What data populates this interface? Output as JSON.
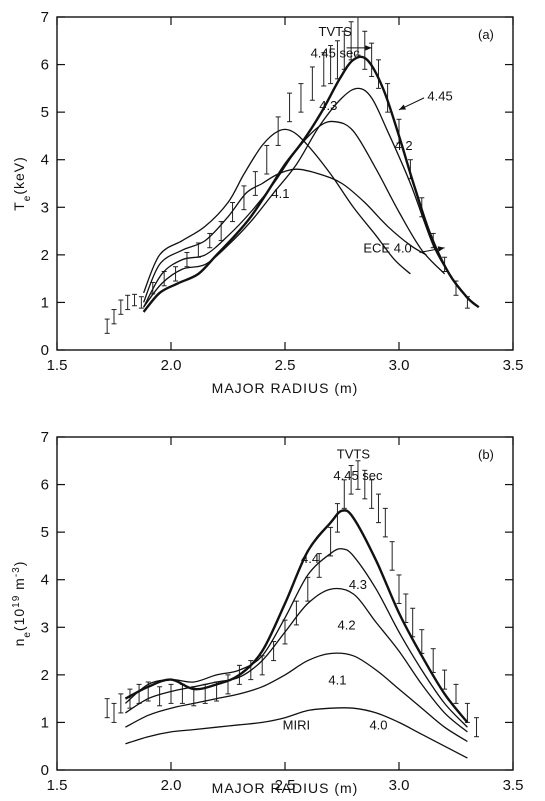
{
  "chart_data": [
    {
      "panel_label": "(a)",
      "type": "line",
      "xlabel": "MAJOR RADIUS (m)",
      "ylabel": "Te(keV)",
      "xlim": [
        1.5,
        3.5
      ],
      "ylim": [
        0,
        7
      ],
      "xticks": [
        "1.5",
        "2.0",
        "2.5",
        "3.0",
        "3.5"
      ],
      "yticks": [
        "0",
        "1",
        "2",
        "3",
        "4",
        "5",
        "6",
        "7"
      ],
      "series": [
        {
          "name": "4.45",
          "bold": true,
          "x": [
            1.88,
            1.95,
            2.03,
            2.12,
            2.2,
            2.28,
            2.35,
            2.42,
            2.5,
            2.58,
            2.66,
            2.74,
            2.8,
            2.86,
            2.93,
            3.0,
            3.07,
            3.14,
            3.22,
            3.3,
            3.35
          ],
          "y": [
            0.8,
            1.2,
            1.4,
            1.6,
            2.0,
            2.4,
            2.8,
            3.3,
            3.9,
            4.4,
            5.0,
            5.7,
            6.1,
            6.1,
            5.5,
            4.5,
            3.4,
            2.4,
            1.6,
            1.1,
            0.9
          ]
        },
        {
          "name": "4.3",
          "x": [
            1.88,
            1.96,
            2.05,
            2.15,
            2.25,
            2.35,
            2.45,
            2.55,
            2.65,
            2.75,
            2.82,
            2.88,
            2.95,
            3.05,
            3.15,
            3.22
          ],
          "y": [
            0.9,
            1.4,
            1.7,
            1.8,
            2.2,
            2.7,
            3.3,
            3.9,
            4.7,
            5.3,
            5.5,
            5.3,
            4.6,
            3.5,
            2.2,
            1.6
          ]
        },
        {
          "name": "4.2",
          "x": [
            1.88,
            1.96,
            2.05,
            2.15,
            2.25,
            2.35,
            2.45,
            2.55,
            2.65,
            2.72,
            2.8,
            2.9,
            3.0,
            3.1,
            3.2
          ],
          "y": [
            0.9,
            1.6,
            1.9,
            2.0,
            2.4,
            2.9,
            3.5,
            4.2,
            4.7,
            4.8,
            4.6,
            3.8,
            2.9,
            2.1,
            1.6
          ]
        },
        {
          "name": "4.1",
          "x": [
            1.88,
            1.95,
            2.05,
            2.15,
            2.25,
            2.33,
            2.4,
            2.47,
            2.55,
            2.65,
            2.75,
            2.85,
            2.95,
            3.05,
            3.12
          ],
          "y": [
            1.0,
            1.8,
            2.1,
            2.3,
            2.8,
            3.3,
            3.5,
            3.7,
            3.8,
            3.7,
            3.5,
            3.1,
            2.6,
            2.2,
            2.0
          ]
        },
        {
          "name": "ECE 4.0",
          "x": [
            1.88,
            1.95,
            2.05,
            2.15,
            2.25,
            2.32,
            2.4,
            2.47,
            2.53,
            2.6,
            2.7,
            2.8,
            2.9,
            2.98,
            3.05
          ],
          "y": [
            1.2,
            2.0,
            2.3,
            2.6,
            3.1,
            3.7,
            4.3,
            4.6,
            4.6,
            4.3,
            3.7,
            3.0,
            2.4,
            1.9,
            1.6
          ]
        }
      ],
      "errorbars": {
        "x": [
          1.72,
          1.75,
          1.78,
          1.81,
          1.84,
          1.87,
          1.92,
          1.97,
          2.02,
          2.07,
          2.12,
          2.17,
          2.22,
          2.27,
          2.32,
          2.37,
          2.42,
          2.47,
          2.52,
          2.57,
          2.62,
          2.67,
          2.7,
          2.73,
          2.76,
          2.79,
          2.82,
          2.85,
          2.88,
          2.91,
          2.95,
          3.0,
          3.05,
          3.1,
          3.15,
          3.2,
          3.25,
          3.3
        ],
        "y": [
          0.5,
          0.7,
          0.9,
          1.0,
          1.05,
          1.0,
          1.3,
          1.5,
          1.6,
          1.9,
          2.1,
          2.3,
          2.5,
          2.9,
          3.2,
          3.5,
          4.0,
          4.6,
          5.1,
          5.3,
          5.6,
          5.9,
          6.0,
          6.1,
          6.3,
          6.5,
          6.6,
          6.3,
          6.1,
          5.8,
          5.3,
          4.6,
          3.8,
          3.0,
          2.3,
          1.8,
          1.3,
          1.0
        ],
        "err": [
          0.15,
          0.15,
          0.15,
          0.15,
          0.12,
          0.12,
          0.12,
          0.15,
          0.15,
          0.15,
          0.15,
          0.15,
          0.2,
          0.2,
          0.25,
          0.25,
          0.3,
          0.3,
          0.3,
          0.3,
          0.35,
          0.35,
          0.4,
          0.4,
          0.4,
          0.4,
          0.4,
          0.4,
          0.35,
          0.3,
          0.3,
          0.25,
          0.2,
          0.2,
          0.15,
          0.15,
          0.15,
          0.12
        ]
      },
      "annotations": [
        {
          "text": "TVTS",
          "x": 2.72,
          "y": 6.6
        },
        {
          "text": "4.45 sec",
          "x": 2.72,
          "y": 6.15
        },
        {
          "text": "4.45",
          "x": 3.18,
          "y": 5.25
        },
        {
          "text": "4.3",
          "x": 2.69,
          "y": 5.05
        },
        {
          "text": "4.2",
          "x": 3.02,
          "y": 4.2
        },
        {
          "text": "4.1",
          "x": 2.48,
          "y": 3.2
        },
        {
          "text": "ECE 4.0",
          "x": 2.95,
          "y": 2.05
        }
      ]
    },
    {
      "panel_label": "(b)",
      "type": "line",
      "xlabel": "MAJOR RADIUS (m)",
      "ylabel": "ne(10^19 m^-3)",
      "xlim": [
        1.5,
        3.5
      ],
      "ylim": [
        0,
        7
      ],
      "xticks": [
        "1.5",
        "2.0",
        "2.5",
        "3.0",
        "3.5"
      ],
      "yticks": [
        "0",
        "1",
        "2",
        "3",
        "4",
        "5",
        "6",
        "7"
      ],
      "series": [
        {
          "name": "4.4",
          "bold": true,
          "x": [
            1.8,
            1.9,
            2.0,
            2.1,
            2.2,
            2.3,
            2.4,
            2.5,
            2.6,
            2.7,
            2.75,
            2.8,
            2.9,
            3.0,
            3.1,
            3.2,
            3.3
          ],
          "y": [
            1.5,
            1.75,
            1.9,
            1.7,
            1.8,
            2.0,
            2.5,
            3.5,
            4.6,
            5.2,
            5.45,
            5.3,
            4.4,
            3.3,
            2.4,
            1.6,
            1.0
          ]
        },
        {
          "name": "4.3",
          "x": [
            1.8,
            1.9,
            2.0,
            2.1,
            2.2,
            2.3,
            2.4,
            2.5,
            2.6,
            2.7,
            2.75,
            2.8,
            2.9,
            3.0,
            3.1,
            3.2,
            3.3
          ],
          "y": [
            1.4,
            1.8,
            1.9,
            1.85,
            2.0,
            2.1,
            2.4,
            3.2,
            4.1,
            4.55,
            4.65,
            4.5,
            3.8,
            2.9,
            2.1,
            1.4,
            0.9
          ]
        },
        {
          "name": "4.2",
          "x": [
            1.8,
            1.9,
            2.0,
            2.1,
            2.2,
            2.3,
            2.4,
            2.5,
            2.6,
            2.7,
            2.8,
            2.9,
            3.0,
            3.1,
            3.2,
            3.3
          ],
          "y": [
            1.2,
            1.5,
            1.65,
            1.75,
            1.85,
            1.95,
            2.3,
            2.9,
            3.5,
            3.8,
            3.7,
            3.1,
            2.5,
            1.8,
            1.2,
            0.8
          ]
        },
        {
          "name": "4.1",
          "x": [
            1.8,
            1.9,
            2.0,
            2.1,
            2.2,
            2.3,
            2.4,
            2.5,
            2.6,
            2.7,
            2.8,
            2.9,
            3.0,
            3.1,
            3.2,
            3.3
          ],
          "y": [
            0.9,
            1.15,
            1.3,
            1.4,
            1.5,
            1.6,
            1.75,
            2.0,
            2.3,
            2.45,
            2.4,
            2.1,
            1.7,
            1.3,
            0.9,
            0.6
          ]
        },
        {
          "name": "4.0",
          "x": [
            1.8,
            1.9,
            2.0,
            2.1,
            2.2,
            2.3,
            2.4,
            2.5,
            2.6,
            2.7,
            2.8,
            2.9,
            3.0,
            3.1,
            3.2,
            3.3
          ],
          "y": [
            0.55,
            0.7,
            0.8,
            0.85,
            0.9,
            0.95,
            1.0,
            1.1,
            1.25,
            1.3,
            1.3,
            1.2,
            1.0,
            0.75,
            0.5,
            0.25
          ]
        }
      ],
      "errorbars": {
        "x": [
          1.72,
          1.75,
          1.78,
          1.82,
          1.86,
          1.9,
          1.95,
          2.0,
          2.05,
          2.1,
          2.15,
          2.2,
          2.25,
          2.3,
          2.35,
          2.4,
          2.45,
          2.5,
          2.55,
          2.6,
          2.65,
          2.7,
          2.73,
          2.76,
          2.79,
          2.82,
          2.85,
          2.88,
          2.91,
          2.94,
          2.97,
          3.0,
          3.03,
          3.06,
          3.1,
          3.15,
          3.2,
          3.25,
          3.3,
          3.34
        ],
        "y": [
          1.3,
          1.2,
          1.4,
          1.5,
          1.6,
          1.65,
          1.55,
          1.6,
          1.6,
          1.55,
          1.6,
          1.65,
          1.8,
          2.0,
          2.1,
          2.2,
          2.5,
          2.9,
          3.3,
          3.8,
          4.3,
          4.8,
          5.3,
          5.8,
          6.1,
          6.2,
          6.0,
          5.8,
          5.5,
          5.2,
          4.5,
          3.8,
          3.4,
          3.1,
          2.7,
          2.3,
          1.9,
          1.6,
          1.2,
          0.9
        ],
        "err": [
          0.2,
          0.2,
          0.2,
          0.2,
          0.2,
          0.2,
          0.2,
          0.2,
          0.2,
          0.2,
          0.2,
          0.2,
          0.2,
          0.2,
          0.2,
          0.2,
          0.2,
          0.25,
          0.25,
          0.25,
          0.25,
          0.3,
          0.3,
          0.3,
          0.3,
          0.3,
          0.3,
          0.3,
          0.3,
          0.3,
          0.3,
          0.3,
          0.3,
          0.3,
          0.25,
          0.25,
          0.2,
          0.2,
          0.2,
          0.2
        ]
      },
      "annotations": [
        {
          "text": "TVTS",
          "x": 2.8,
          "y": 6.55
        },
        {
          "text": "4.45 sec",
          "x": 2.82,
          "y": 6.1
        },
        {
          "text": "4.4",
          "x": 2.61,
          "y": 4.35
        },
        {
          "text": "4.3",
          "x": 2.82,
          "y": 3.8
        },
        {
          "text": "4.2",
          "x": 2.77,
          "y": 2.95
        },
        {
          "text": "4.1",
          "x": 2.73,
          "y": 1.8
        },
        {
          "text": "MIRI",
          "x": 2.55,
          "y": 0.85
        },
        {
          "text": "4.0",
          "x": 2.91,
          "y": 0.85
        }
      ]
    }
  ]
}
